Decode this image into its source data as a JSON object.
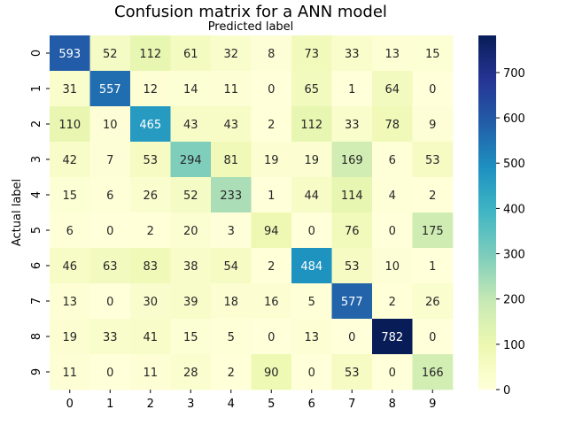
{
  "chart_data": {
    "type": "heatmap",
    "title": "Confusion matrix for a ANN  model",
    "xlabel": "Predicted label",
    "ylabel": "Actual label",
    "x_categories": [
      "0",
      "1",
      "2",
      "3",
      "4",
      "5",
      "6",
      "7",
      "8",
      "9"
    ],
    "y_categories": [
      "0",
      "1",
      "2",
      "3",
      "4",
      "5",
      "6",
      "7",
      "8",
      "9"
    ],
    "values": [
      [
        593,
        52,
        112,
        61,
        32,
        8,
        73,
        33,
        13,
        15
      ],
      [
        31,
        557,
        12,
        14,
        11,
        0,
        65,
        1,
        64,
        0
      ],
      [
        110,
        10,
        465,
        43,
        43,
        2,
        112,
        33,
        78,
        9
      ],
      [
        42,
        7,
        53,
        294,
        81,
        19,
        19,
        169,
        6,
        53
      ],
      [
        15,
        6,
        26,
        52,
        233,
        1,
        44,
        114,
        4,
        2
      ],
      [
        6,
        0,
        2,
        20,
        3,
        94,
        0,
        76,
        0,
        175
      ],
      [
        46,
        63,
        83,
        38,
        54,
        2,
        484,
        53,
        10,
        1
      ],
      [
        13,
        0,
        30,
        39,
        18,
        16,
        5,
        577,
        2,
        26
      ],
      [
        19,
        33,
        41,
        15,
        5,
        0,
        13,
        0,
        782,
        0
      ],
      [
        11,
        0,
        11,
        28,
        2,
        90,
        0,
        53,
        0,
        166
      ]
    ],
    "colormap": "YlGnBu",
    "colorbar": {
      "range": [
        0,
        782
      ],
      "ticks": [
        0,
        100,
        200,
        300,
        400,
        500,
        600,
        700
      ]
    },
    "x_axis_position": "top-label-bottom-ticks",
    "annotations": true
  }
}
